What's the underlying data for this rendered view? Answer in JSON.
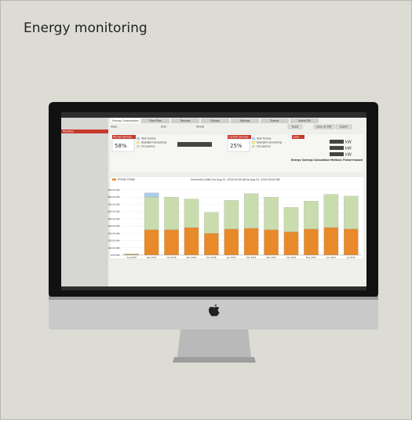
{
  "title": "Energy monitoring",
  "app": {
    "tabs": [
      "Energy Consumption",
      "Floor Plan",
      "Devices",
      "Groups",
      "Settings",
      "Events",
      "Active DR"
    ],
    "sidebar": [
      "Facilities"
    ],
    "view_label": "View:",
    "unit_label": "Unit:",
    "period_label": "Period",
    "apply": "Apply",
    "save_pdf": "Save as PDF",
    "export": "Export",
    "period_savings": {
      "label": "Period Savings",
      "value": "58%"
    },
    "control_savings": {
      "label": "Control Savings",
      "value": "25%"
    },
    "savings_legend": [
      "Task Tuning",
      "Daylight Harvesting",
      "Occupancy"
    ],
    "load": {
      "label": "Load",
      "unit": "kW"
    },
    "method": "Energy Savings Calculation Method: Fixture-based"
  },
  "chart_data": {
    "type": "bar",
    "stacked": true,
    "title": "Electricity (kWh) for Aug 01, 2018 00:00 AM to Aug 01, 2019 00:00 AM",
    "categories": [
      "Aug 2018",
      "Sep 2018",
      "Oct 2018",
      "Nov 2018",
      "Dec 2018",
      "Jan 2019",
      "Feb 2019",
      "Mar 2019",
      "Apr 2019",
      "May 2019",
      "Jun 2019",
      "Jul 2019"
    ],
    "series": [
      {
        "name": "Energy Usage",
        "color": "#e8892a",
        "values": [
          10,
          350,
          350,
          380,
          300,
          360,
          370,
          350,
          320,
          360,
          380,
          360
        ]
      },
      {
        "name": "Daylight Harvesting",
        "color": "#c9dcae",
        "values": [
          10,
          450,
          450,
          395,
          290,
          395,
          480,
          450,
          340,
          385,
          460,
          455
        ]
      },
      {
        "name": "Task Tuning",
        "color": "#a9cde6",
        "values": [
          0,
          60,
          0,
          0,
          0,
          0,
          0,
          0,
          0,
          0,
          0,
          0
        ]
      }
    ],
    "ylim": [
      0,
      900
    ],
    "yticks": [
      {
        "value": 0,
        "label": "0.00 kWh"
      },
      {
        "value": 100,
        "label": "100.00 kWh"
      },
      {
        "value": 200,
        "label": "200.00 kWh"
      },
      {
        "value": 300,
        "label": "300.00 kWh"
      },
      {
        "value": 400,
        "label": "400.00 kWh"
      },
      {
        "value": 500,
        "label": "500.00 kWh"
      },
      {
        "value": 600,
        "label": "600.00 kWh"
      },
      {
        "value": 700,
        "label": "700.00 kWh"
      },
      {
        "value": 800,
        "label": "800.00 kWh"
      },
      {
        "value": 900,
        "label": "900.00 kWh"
      }
    ],
    "grid": true
  }
}
